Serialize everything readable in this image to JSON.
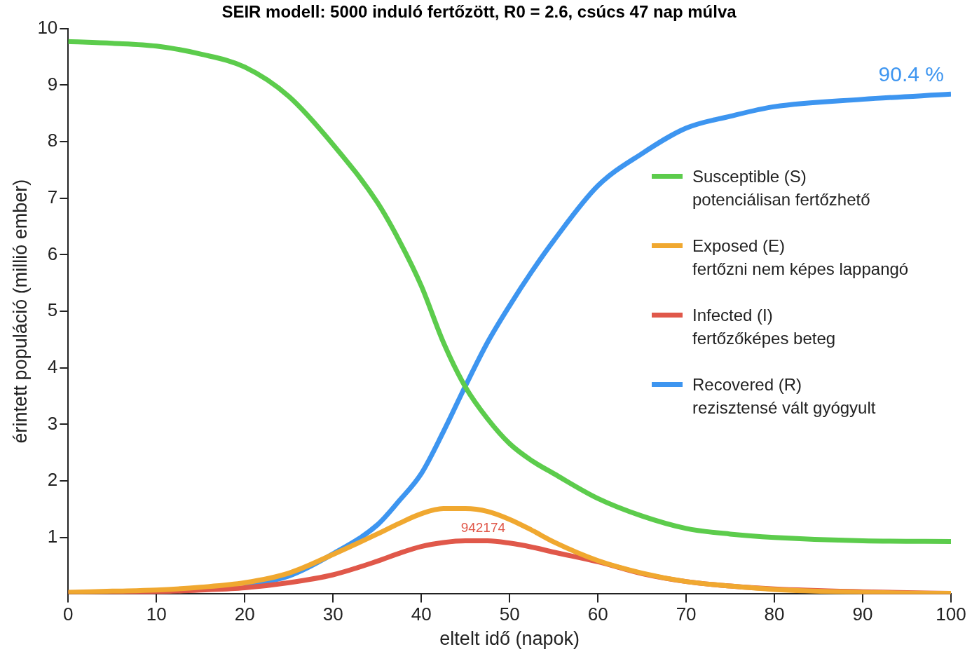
{
  "chart_data": {
    "type": "line",
    "title": "SEIR modell: 5000 induló fertőzött, R0 = 2.6, csúcs 47 nap múlva",
    "xlabel": "eltelt idő (napok)",
    "ylabel": "érintett populáció (millió ember)",
    "x": [
      0,
      5,
      10,
      15,
      20,
      25,
      30,
      35,
      37.5,
      40,
      42.5,
      45,
      47.5,
      50,
      52.5,
      55,
      60,
      65,
      70,
      75,
      80,
      90,
      100
    ],
    "series": [
      {
        "name": "Susceptible (S)\npotenciálisan fertőzhető",
        "color": "#5ccc4c",
        "values": [
          9.77,
          9.74,
          9.69,
          9.55,
          9.32,
          8.8,
          7.95,
          6.93,
          6.25,
          5.45,
          4.45,
          3.66,
          3.1,
          2.66,
          2.36,
          2.13,
          1.69,
          1.38,
          1.16,
          1.06,
          1.0,
          0.94,
          0.93
        ]
      },
      {
        "name": "Exposed (E)\nfertőzni nem képes lappangó",
        "color": "#f0a830",
        "values": [
          0.03,
          0.05,
          0.07,
          0.12,
          0.2,
          0.37,
          0.7,
          1.06,
          1.25,
          1.42,
          1.51,
          1.51,
          1.46,
          1.32,
          1.13,
          0.92,
          0.59,
          0.37,
          0.22,
          0.14,
          0.08,
          0.03,
          0.01
        ]
      },
      {
        "name": "Infected (I)\nfertőzőképes beteg",
        "color": "#e0584a",
        "values": [
          0.02,
          0.03,
          0.04,
          0.07,
          0.11,
          0.2,
          0.34,
          0.58,
          0.72,
          0.84,
          0.91,
          0.94,
          0.94,
          0.9,
          0.83,
          0.74,
          0.57,
          0.36,
          0.22,
          0.14,
          0.09,
          0.04,
          0.01
        ]
      },
      {
        "name": "Recovered (R)\nrezisztensé vált gyógyult",
        "color": "#3d95f0",
        "values": [
          null,
          null,
          null,
          null,
          0.15,
          0.32,
          0.71,
          1.22,
          1.65,
          2.13,
          2.87,
          3.68,
          4.45,
          5.1,
          5.7,
          6.25,
          7.22,
          7.79,
          8.24,
          8.45,
          8.62,
          8.75,
          8.84
        ]
      }
    ],
    "xlim": [
      0,
      100
    ],
    "xticks": [
      0,
      10,
      20,
      30,
      40,
      50,
      60,
      70,
      80,
      90,
      100
    ],
    "ylim": [
      0,
      10
    ],
    "yticks": [
      1,
      2,
      3,
      4,
      5,
      6,
      7,
      8,
      9,
      10
    ],
    "annotations": [
      {
        "text": "942174",
        "x": 47,
        "y": 0.942174
      },
      {
        "text": "90.4 %",
        "x": 100,
        "y": 8.84
      }
    ],
    "legend": "right",
    "grid": false,
    "marker": "none",
    "line_style": "solid"
  }
}
